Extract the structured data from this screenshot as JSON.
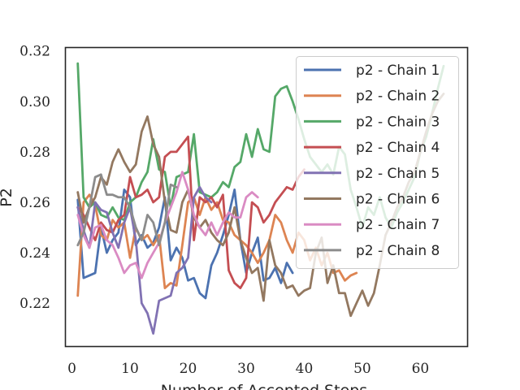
{
  "chart_data": {
    "type": "line",
    "title": "",
    "xlabel": "Number of Accepted Steps",
    "ylabel": "P2",
    "xlim": [
      -1.2,
      68.2
    ],
    "ylim": [
      0.203,
      0.3215
    ],
    "xticks": [
      0,
      10,
      20,
      30,
      40,
      50,
      60
    ],
    "yticks": [
      0.22,
      0.24,
      0.26,
      0.28,
      0.3,
      0.32
    ],
    "ytick_labels": [
      "0.22",
      "0.24",
      "0.26",
      "0.28",
      "0.30",
      "0.32"
    ],
    "grid": false,
    "legend_position": "upper right",
    "series": [
      {
        "name": "p2 - Chain 1",
        "color": "#4c72b0",
        "x": [
          1,
          2,
          3,
          4,
          5,
          6,
          7,
          8,
          9,
          10,
          11,
          12,
          13,
          14,
          15,
          16,
          17,
          18,
          19,
          20,
          21,
          22,
          23,
          24,
          25,
          26,
          27,
          28,
          29,
          30,
          31,
          32,
          33,
          34,
          35,
          36,
          37,
          38
        ],
        "y": [
          0.261,
          0.23,
          0.231,
          0.232,
          0.25,
          0.24,
          0.245,
          0.248,
          0.265,
          0.262,
          0.243,
          0.247,
          0.242,
          0.244,
          0.25,
          0.262,
          0.237,
          0.242,
          0.238,
          0.229,
          0.23,
          0.224,
          0.222,
          0.235,
          0.24,
          0.247,
          0.255,
          0.265,
          0.245,
          0.232,
          0.24,
          0.246,
          0.229,
          0.23,
          0.234,
          0.228,
          0.236,
          0.232
        ]
      },
      {
        "name": "p2 - Chain 2",
        "color": "#dd8452",
        "x": [
          1,
          2,
          3,
          4,
          5,
          6,
          7,
          8,
          9,
          10,
          11,
          12,
          13,
          14,
          15,
          16,
          17,
          18,
          19,
          20,
          21,
          22,
          23,
          24,
          25,
          26,
          27,
          28,
          29,
          30,
          31,
          32,
          33,
          34,
          35,
          36,
          37,
          38,
          39,
          40,
          41,
          42,
          43,
          44,
          45,
          46,
          47,
          48,
          49
        ],
        "y": [
          0.223,
          0.26,
          0.263,
          0.259,
          0.247,
          0.245,
          0.253,
          0.25,
          0.252,
          0.238,
          0.25,
          0.245,
          0.247,
          0.243,
          0.247,
          0.226,
          0.228,
          0.227,
          0.243,
          0.26,
          0.262,
          0.255,
          0.262,
          0.257,
          0.26,
          0.253,
          0.252,
          0.247,
          0.245,
          0.243,
          0.24,
          0.236,
          0.24,
          0.245,
          0.255,
          0.252,
          0.245,
          0.24,
          0.248,
          0.245,
          0.237,
          0.242,
          0.235,
          0.24,
          0.232,
          0.233,
          0.229,
          0.231,
          0.232
        ]
      },
      {
        "name": "p2 - Chain 3",
        "color": "#55a868",
        "x": [
          1,
          2,
          3,
          4,
          5,
          6,
          7,
          8,
          9,
          10,
          11,
          12,
          13,
          14,
          15,
          16,
          17,
          18,
          19,
          20,
          21,
          22,
          23,
          24,
          25,
          26,
          27,
          28,
          29,
          30,
          31,
          32,
          33,
          34,
          35,
          36,
          37,
          38,
          39,
          40,
          41,
          42,
          43,
          44,
          45,
          46,
          47,
          48,
          49,
          50,
          51,
          52,
          53,
          54,
          55,
          56,
          57,
          58,
          59,
          60,
          61,
          62,
          63,
          64
        ],
        "y": [
          0.315,
          0.262,
          0.258,
          0.26,
          0.255,
          0.254,
          0.258,
          0.254,
          0.253,
          0.26,
          0.262,
          0.268,
          0.272,
          0.285,
          0.273,
          0.272,
          0.258,
          0.27,
          0.271,
          0.272,
          0.287,
          0.264,
          0.263,
          0.262,
          0.264,
          0.268,
          0.266,
          0.274,
          0.276,
          0.287,
          0.278,
          0.289,
          0.281,
          0.28,
          0.302,
          0.305,
          0.306,
          0.3,
          0.293,
          0.285,
          0.278,
          0.275,
          0.272,
          0.275,
          0.271,
          0.282,
          0.279,
          0.265,
          0.258,
          0.25,
          0.258,
          0.255,
          0.262,
          0.254,
          0.25,
          0.256,
          0.26,
          0.265,
          0.27,
          0.28,
          0.286,
          0.295,
          0.305,
          0.314
        ]
      },
      {
        "name": "p2 - Chain 4",
        "color": "#c44e52",
        "x": [
          1,
          2,
          3,
          4,
          5,
          6,
          7,
          8,
          9,
          10,
          11,
          12,
          13,
          14,
          15,
          16,
          17,
          18,
          19,
          20,
          21,
          22,
          23,
          24,
          25,
          26,
          27,
          28,
          29,
          30,
          31,
          32,
          33,
          34,
          35,
          36,
          37,
          38,
          39,
          40
        ],
        "y": [
          0.258,
          0.255,
          0.25,
          0.245,
          0.252,
          0.249,
          0.248,
          0.253,
          0.255,
          0.27,
          0.262,
          0.263,
          0.265,
          0.26,
          0.262,
          0.278,
          0.28,
          0.28,
          0.283,
          0.286,
          0.245,
          0.262,
          0.26,
          0.262,
          0.258,
          0.263,
          0.233,
          0.228,
          0.226,
          0.23,
          0.26,
          0.258,
          0.252,
          0.255,
          0.26,
          0.263,
          0.266,
          0.265,
          0.27,
          0.273
        ]
      },
      {
        "name": "p2 - Chain 5",
        "color": "#8172b3",
        "x": [
          1,
          2,
          3,
          4,
          5,
          6,
          7,
          8,
          9,
          10,
          11,
          12,
          13,
          14,
          15,
          16,
          17,
          18,
          19,
          20,
          21,
          22,
          23,
          24
        ],
        "y": [
          0.258,
          0.249,
          0.242,
          0.26,
          0.257,
          0.256,
          0.248,
          0.242,
          0.252,
          0.258,
          0.245,
          0.22,
          0.216,
          0.208,
          0.221,
          0.222,
          0.223,
          0.232,
          0.234,
          0.238,
          0.262,
          0.266,
          0.262,
          0.26
        ]
      },
      {
        "name": "p2 - Chain 6",
        "color": "#937860",
        "x": [
          1,
          2,
          3,
          4,
          5,
          6,
          7,
          8,
          9,
          10,
          11,
          12,
          13,
          14,
          15,
          16,
          17,
          18,
          19,
          20,
          21,
          22,
          23,
          24,
          25,
          26,
          27,
          28,
          29,
          30,
          31,
          32,
          33,
          34,
          35,
          36,
          37,
          38,
          39,
          40,
          41,
          42,
          43,
          44,
          45,
          46,
          47,
          48,
          49,
          50,
          51,
          52,
          53,
          54,
          55,
          56,
          57,
          58,
          59,
          60,
          61,
          62,
          63,
          64
        ],
        "y": [
          0.264,
          0.252,
          0.258,
          0.262,
          0.27,
          0.267,
          0.276,
          0.281,
          0.276,
          0.272,
          0.275,
          0.288,
          0.294,
          0.283,
          0.278,
          0.26,
          0.249,
          0.248,
          0.26,
          0.265,
          0.254,
          0.25,
          0.253,
          0.248,
          0.245,
          0.243,
          0.248,
          0.258,
          0.245,
          0.238,
          0.232,
          0.234,
          0.221,
          0.245,
          0.235,
          0.232,
          0.226,
          0.227,
          0.223,
          0.225,
          0.226,
          0.24,
          0.246,
          0.228,
          0.235,
          0.224,
          0.224,
          0.215,
          0.22,
          0.225,
          0.219,
          0.224,
          0.235,
          0.247,
          0.252,
          0.258,
          0.262,
          0.268,
          0.272,
          0.28,
          0.288,
          0.295,
          0.3,
          0.303
        ]
      },
      {
        "name": "p2 - Chain 7",
        "color": "#da8bc3",
        "x": [
          1,
          2,
          3,
          4,
          5,
          6,
          7,
          8,
          9,
          10,
          11,
          12,
          13,
          14,
          15,
          16,
          17,
          18,
          19,
          20,
          21,
          22,
          23,
          24,
          25,
          26,
          27,
          28,
          29,
          30,
          31,
          32
        ],
        "y": [
          0.255,
          0.247,
          0.242,
          0.25,
          0.251,
          0.245,
          0.243,
          0.238,
          0.232,
          0.235,
          0.236,
          0.23,
          0.236,
          0.24,
          0.244,
          0.252,
          0.258,
          0.264,
          0.272,
          0.265,
          0.255,
          0.25,
          0.247,
          0.252,
          0.247,
          0.252,
          0.256,
          0.254,
          0.254,
          0.262,
          0.264,
          0.262
        ]
      },
      {
        "name": "p2 - Chain 8",
        "color": "#8c8c8c",
        "x": [
          1,
          2,
          3,
          4,
          5,
          6,
          7,
          8,
          9,
          10,
          11,
          12,
          13,
          14,
          15,
          16,
          17,
          18
        ],
        "y": [
          0.243,
          0.248,
          0.258,
          0.27,
          0.271,
          0.263,
          0.263,
          0.262,
          0.262,
          0.258,
          0.25,
          0.245,
          0.255,
          0.252,
          0.243,
          0.252,
          0.267,
          0.266
        ]
      }
    ]
  }
}
